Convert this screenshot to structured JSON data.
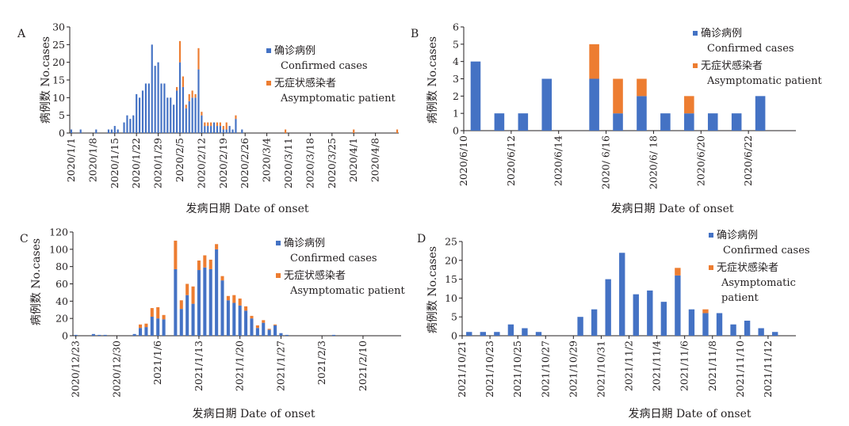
{
  "figure": {
    "colors": {
      "confirmed": "#4472c4",
      "asymptomatic": "#ed7d31"
    },
    "legend": {
      "confirmed_cn": "确诊病例",
      "confirmed_en": "Confirmed cases",
      "asymptomatic_cn": "无症状感染者",
      "asymptomatic_en": "Asymptomatic patient",
      "asymptomatic_en_line1": "Asymptomatic",
      "asymptomatic_en_line2": "patient"
    },
    "ylabel": "病例数 No.cases",
    "xlabel": "发病日期 Date of onset"
  },
  "chart_data": [
    {
      "panel": "A",
      "type": "bar",
      "stacked": true,
      "ylim": [
        0,
        30
      ],
      "yticks": [
        0,
        5,
        10,
        15,
        20,
        25,
        30
      ],
      "xlabel": "发病日期 Date of onset",
      "ylabel": "病例数 No.cases",
      "tick_labels": [
        "2020/1/1",
        "2020/1/8",
        "2020/1/15",
        "2020/1/22",
        "2020/1/29",
        "2020/2/5",
        "2020/2/12",
        "2020/2/19",
        "2020/2/26",
        "2020/3/4",
        "2020/3/11",
        "2020/3/18",
        "2020/3/25",
        "2020/4/1",
        "2020/4/8"
      ],
      "tick_every": 7,
      "series": [
        {
          "name": "确诊病例 Confirmed cases",
          "values": [
            1,
            0,
            0,
            1,
            0,
            0,
            0,
            0,
            1,
            0,
            0,
            0,
            1,
            1,
            2,
            1,
            0,
            3,
            5,
            4,
            5,
            11,
            10,
            12,
            14,
            14,
            25,
            19,
            20,
            14,
            14,
            10,
            10,
            8,
            12,
            20,
            13,
            7,
            9,
            10,
            10,
            18,
            5,
            2,
            2,
            2,
            3,
            2,
            2,
            1,
            1,
            2,
            1,
            4,
            0,
            1,
            0,
            0,
            0,
            0,
            0,
            0,
            0,
            0,
            0,
            0,
            0,
            0,
            0,
            0,
            0,
            0,
            0,
            0,
            0,
            0,
            0,
            0,
            0,
            0,
            0,
            0,
            0,
            0,
            0,
            0,
            0,
            0,
            0,
            0,
            0,
            0,
            0,
            0,
            0,
            0,
            0,
            0,
            0,
            0,
            0,
            0,
            0,
            0,
            0,
            0
          ]
        },
        {
          "name": "无症状感染者 Asymptomatic patient",
          "values": [
            0,
            0,
            0,
            0,
            0,
            0,
            0,
            0,
            0,
            0,
            0,
            0,
            0,
            0,
            0,
            0,
            0,
            0,
            0,
            0,
            0,
            0,
            0,
            0,
            0,
            0,
            0,
            0,
            0,
            0,
            0,
            0,
            0,
            0,
            1,
            6,
            3,
            1,
            2,
            2,
            1,
            6,
            1,
            1,
            1,
            1,
            0,
            1,
            1,
            1,
            2,
            0,
            0,
            1,
            0,
            0,
            0,
            0,
            0,
            0,
            0,
            0,
            0,
            0,
            0,
            0,
            0,
            0,
            0,
            1,
            0,
            0,
            0,
            0,
            0,
            0,
            0,
            0,
            0,
            0,
            0,
            0,
            0,
            0,
            0,
            0,
            0,
            0,
            0,
            0,
            0,
            1,
            0,
            0,
            0,
            0,
            0,
            0,
            0,
            0,
            0,
            0,
            0,
            0,
            0,
            1
          ]
        }
      ]
    },
    {
      "panel": "B",
      "type": "bar",
      "stacked": true,
      "ylim": [
        0,
        6
      ],
      "yticks": [
        0,
        1,
        2,
        3,
        4,
        5,
        6
      ],
      "xlabel": "发病日期 Date of onset",
      "ylabel": "病例数 No.cases",
      "categories": [
        "2020/6/10",
        "2020/6/11",
        "2020/6/12",
        "2020/6/13",
        "2020/6/14",
        "2020/6/15",
        "2020/6/16",
        "2020/6/17",
        "2020/6/18",
        "2020/6/19",
        "2020/6/20",
        "2020/6/21",
        "2020/6/22",
        "2020/6/23"
      ],
      "tick_labels": [
        "2020/6/10",
        "2020/6/12",
        "2020/6/14",
        "2020/ 6/16",
        "2020/6/ 18",
        "2020/6/20",
        "2020/6/22"
      ],
      "tick_every": 2,
      "series": [
        {
          "name": "确诊病例 Confirmed cases",
          "values": [
            4,
            1,
            1,
            3,
            0,
            3,
            1,
            2,
            1,
            1,
            1,
            1,
            2,
            0
          ]
        },
        {
          "name": "无症状感染者 Asymptomatic patient",
          "values": [
            0,
            0,
            0,
            0,
            0,
            2,
            2,
            1,
            0,
            1,
            0,
            0,
            0,
            0
          ]
        }
      ]
    },
    {
      "panel": "C",
      "type": "bar",
      "stacked": true,
      "ylim": [
        0,
        120
      ],
      "yticks": [
        0,
        20,
        40,
        60,
        80,
        100,
        120
      ],
      "xlabel": "发病日期 Date of onset",
      "ylabel": "病例数 No.cases",
      "tick_labels": [
        "2020/12/23",
        "2020/12/30",
        "2021/1/6",
        "2021/1/13",
        "2021/1/20",
        "2021/1/27",
        "2021/2/3",
        "2021/2/10"
      ],
      "tick_every": 7,
      "series": [
        {
          "name": "确诊病例 Confirmed cases",
          "values": [
            1,
            0,
            0,
            2,
            1,
            1,
            0,
            0,
            0,
            0,
            2,
            9,
            10,
            22,
            20,
            19,
            0,
            77,
            31,
            47,
            37,
            76,
            79,
            77,
            100,
            64,
            41,
            38,
            35,
            29,
            20,
            9,
            15,
            7,
            12,
            3,
            1,
            0,
            0,
            0,
            0,
            0,
            0,
            0,
            1,
            0,
            0,
            0,
            0,
            0,
            0,
            0,
            0,
            0,
            0,
            0
          ]
        },
        {
          "name": "无症状感染者 Asymptomatic patient",
          "values": [
            0,
            0,
            0,
            0,
            0,
            0,
            0,
            0,
            0,
            0,
            0,
            4,
            4,
            10,
            13,
            5,
            0,
            33,
            10,
            13,
            20,
            11,
            14,
            11,
            6,
            5,
            5,
            9,
            8,
            5,
            3,
            3,
            3,
            1,
            1,
            0,
            0,
            0,
            0,
            0,
            0,
            0,
            0,
            0,
            0,
            0,
            0,
            0,
            0,
            0,
            0,
            0,
            0,
            0,
            0,
            0
          ]
        }
      ]
    },
    {
      "panel": "D",
      "type": "bar",
      "stacked": true,
      "ylim": [
        0,
        25
      ],
      "yticks": [
        0,
        5,
        10,
        15,
        20,
        25
      ],
      "xlabel": "发病日期 Date of onset",
      "ylabel": "病例数 No.cases",
      "categories": [
        "2021/10/21",
        "2021/10/22",
        "2021/10/23",
        "2021/10/24",
        "2021/10/25",
        "2021/10/26",
        "2021/10/27",
        "2021/10/28",
        "2021/10/29",
        "2021/10/30",
        "2021/10/31",
        "2021/11/1",
        "2021/11/2",
        "2021/11/3",
        "2021/11/4",
        "2021/11/5",
        "2021/11/6",
        "2021/11/7",
        "2021/11/8",
        "2021/11/9",
        "2021/11/10",
        "2021/11/11",
        "2021/11/12",
        "2021/11/13"
      ],
      "tick_labels": [
        "2021/10/21",
        "2021/10/23",
        "2021/10/25",
        "2021/10/27",
        "2021/10/29",
        "2021/10/31",
        "2021/11/2",
        "2021/11/4",
        "2021/11/6",
        "2021/11/8",
        "2021/11/10",
        "2021/11/12"
      ],
      "tick_every": 2,
      "series": [
        {
          "name": "确诊病例 Confirmed cases",
          "values": [
            1,
            1,
            1,
            3,
            2,
            1,
            0,
            0,
            5,
            7,
            15,
            22,
            11,
            12,
            9,
            16,
            7,
            6,
            6,
            3,
            4,
            2,
            1,
            0
          ]
        },
        {
          "name": "无症状感染者 Asymptomatic patient",
          "values": [
            0,
            0,
            0,
            0,
            0,
            0,
            0,
            0,
            0,
            0,
            0,
            0,
            0,
            0,
            0,
            2,
            0,
            1,
            0,
            0,
            0,
            0,
            0,
            0
          ]
        }
      ]
    }
  ]
}
